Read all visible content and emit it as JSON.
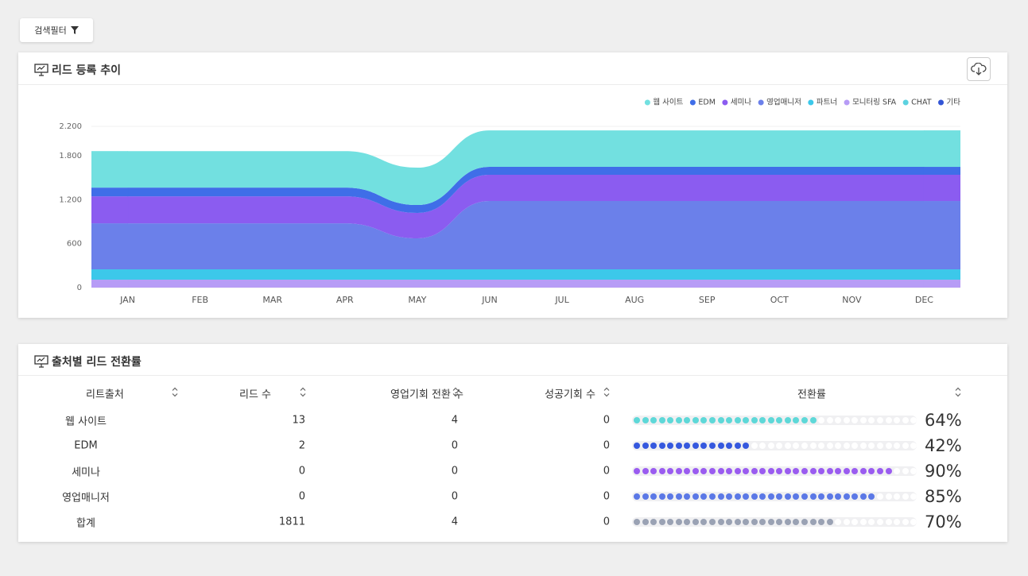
{
  "filter_button": "검색필터",
  "trend_card": {
    "title": "리드 등록 추이",
    "chart_data": {
      "type": "stacked-area",
      "categories": [
        "JAN",
        "FEB",
        "MAR",
        "APR",
        "MAY",
        "JUN",
        "JUL",
        "AUG",
        "SEP",
        "OCT",
        "NOV",
        "DEC"
      ],
      "ylim": [
        0,
        2200
      ],
      "yticks": [
        0,
        600,
        {
          "value": 1200,
          "label": "1.200"
        },
        {
          "value": 1800,
          "label": "1.800"
        },
        {
          "value": 2200,
          "label": "2.200"
        }
      ],
      "grid": true,
      "legend": "top-right",
      "series": [
        {
          "name": "웹 사이트",
          "color": "#72e0e0",
          "values": [
            498,
            498,
            498,
            498,
            509,
            498,
            498,
            498,
            498,
            498,
            498,
            498
          ]
        },
        {
          "name": "EDM",
          "color": "#3f6ee8",
          "values": [
            119,
            119,
            119,
            119,
            108,
            108,
            108,
            108,
            108,
            108,
            108,
            108
          ]
        },
        {
          "name": "세미나",
          "color": "#8b5cf0",
          "values": [
            368,
            368,
            368,
            368,
            347,
            358,
            358,
            358,
            358,
            358,
            358,
            358
          ]
        },
        {
          "name": "영업매니저",
          "color": "#6b80ea",
          "values": [
            628,
            628,
            628,
            628,
            423,
            932,
            932,
            932,
            932,
            932,
            932,
            932
          ]
        },
        {
          "name": "파트너",
          "color": "#3cc8ea",
          "values": [
            141,
            141,
            141,
            141,
            141,
            141,
            141,
            141,
            141,
            141,
            141,
            141
          ]
        },
        {
          "name": "모니터링 SFA",
          "color": "#b79cf6",
          "values": [
            108,
            108,
            108,
            108,
            108,
            108,
            108,
            108,
            108,
            108,
            108,
            108
          ]
        },
        {
          "name": "CHAT",
          "color": "#5cd2e0",
          "values": [
            0,
            0,
            0,
            0,
            0,
            0,
            0,
            0,
            0,
            0,
            0,
            0
          ]
        },
        {
          "name": "기타",
          "color": "#3355d6",
          "values": [
            0,
            0,
            0,
            0,
            0,
            0,
            0,
            0,
            0,
            0,
            0,
            0
          ]
        }
      ]
    }
  },
  "table_card": {
    "title": "출처별 리드 전환률",
    "table": {
      "headers": [
        "리트출처",
        "리드 수",
        "영업기회 전환 수",
        "성공기회 수",
        "전환률"
      ],
      "rows": [
        {
          "source": "웹 사이트",
          "leads": 13,
          "opportunities": 4,
          "successes": 0,
          "rate": 64,
          "rate_label": "64%",
          "color": "#5ed8d8"
        },
        {
          "source": "EDM",
          "leads": 2,
          "opportunities": 0,
          "successes": 0,
          "rate": 42,
          "rate_label": "42%",
          "color": "#3558de"
        },
        {
          "source": "세미나",
          "leads": 0,
          "opportunities": 0,
          "successes": 0,
          "rate": 90,
          "rate_label": "90%",
          "color": "#9a5cf0"
        },
        {
          "source": "영업매니저",
          "leads": 0,
          "opportunities": 0,
          "successes": 0,
          "rate": 85,
          "rate_label": "85%",
          "color": "#5b78e6"
        },
        {
          "source": "합계",
          "leads": 1811,
          "opportunities": 4,
          "successes": 0,
          "rate": 70,
          "rate_label": "70%",
          "color": "#9aa2b4"
        }
      ]
    }
  }
}
